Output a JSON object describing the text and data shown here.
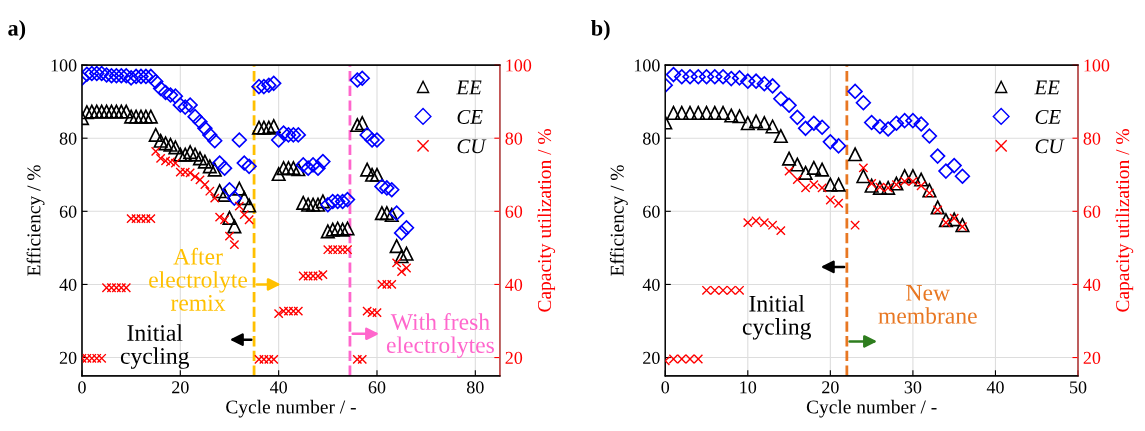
{
  "chart_data": [
    {
      "type": "scatter",
      "title": "a)",
      "xlabel": "Cycle number / -",
      "ylabel": "Efficiency / %",
      "y2label": "Capacity utilization / %",
      "xlim": [
        0,
        85
      ],
      "xticks": [
        0,
        20,
        40,
        60,
        80
      ],
      "ylim": [
        15,
        100
      ],
      "yticks": [
        20,
        40,
        60,
        80,
        100
      ],
      "y2lim": [
        15,
        100
      ],
      "y2ticks": [
        20,
        40,
        60,
        80,
        100
      ],
      "grid": true,
      "legend": "top right",
      "ref_lines": [
        {
          "axis": "x",
          "value": 35,
          "color": "#ffc000",
          "line_style": "dashed"
        },
        {
          "axis": "x",
          "value": 54.5,
          "color": "#ff66cc",
          "line_style": "dashed"
        }
      ],
      "annotations": [
        "After\nelectrolyte\nremix",
        "Initial\ncycling",
        "With fresh\nelectrolytes"
      ],
      "series": [
        {
          "name": "EE",
          "color": "#000000",
          "marker": "triangle",
          "x": [
            0,
            1,
            2,
            3,
            4,
            5,
            6,
            7,
            8,
            9,
            10,
            11,
            12,
            13,
            14,
            15,
            16,
            17,
            18,
            19,
            20,
            21,
            22,
            23,
            24,
            25,
            26,
            27,
            28,
            29,
            30,
            31,
            32,
            33,
            34,
            36,
            37,
            38,
            39,
            40,
            41,
            42,
            43,
            44,
            45,
            46,
            47,
            48,
            49,
            50,
            51,
            52,
            53,
            54,
            56,
            57,
            58,
            59,
            60,
            61,
            62,
            63,
            64,
            65,
            66
          ],
          "values": [
            85.5,
            87.1,
            87.3,
            87.3,
            87.3,
            87.3,
            87.3,
            87.3,
            87.3,
            87.3,
            85.9,
            85.9,
            85.9,
            85.9,
            85.9,
            80.9,
            79.3,
            78.6,
            78.2,
            77.5,
            75.5,
            75.5,
            76.2,
            75.5,
            74.5,
            73.6,
            72.3,
            71.4,
            65.5,
            64.5,
            58.2,
            55.9,
            66.2,
            63.6,
            61.6,
            82.9,
            82.9,
            82.9,
            83.3,
            70.2,
            71.8,
            71.8,
            71.8,
            71.5,
            62.3,
            61.8,
            61.8,
            61.8,
            62.7,
            54.5,
            55.0,
            55.3,
            55.0,
            55.3,
            83.6,
            84.1,
            71.4,
            70.0,
            70.0,
            59.5,
            59.5,
            59.0,
            50.5,
            47.7,
            48.4
          ]
        },
        {
          "name": "CE",
          "color": "#0000ff",
          "marker": "diamond",
          "x": [
            0,
            1,
            2,
            3,
            4,
            5,
            6,
            7,
            8,
            9,
            10,
            11,
            12,
            13,
            14,
            15,
            16,
            17,
            18,
            19,
            20,
            21,
            22,
            23,
            24,
            25,
            26,
            27,
            28,
            29,
            30,
            31,
            32,
            33,
            34,
            36,
            37,
            38,
            39,
            40,
            41,
            42,
            43,
            44,
            45,
            46,
            47,
            48,
            49,
            50,
            51,
            52,
            53,
            54,
            56,
            57,
            58,
            59,
            60,
            61,
            62,
            63,
            64,
            65,
            66
          ],
          "values": [
            96.4,
            97.5,
            97.7,
            97.7,
            97.7,
            97.3,
            97.1,
            97.1,
            97.1,
            97.1,
            96.5,
            96.9,
            96.9,
            96.9,
            96.9,
            95.5,
            93.6,
            92.5,
            91.8,
            91.5,
            89.1,
            88.5,
            89.1,
            85.9,
            84.5,
            82.7,
            80.9,
            79.3,
            73.2,
            71.8,
            65.9,
            63.6,
            79.5,
            73.2,
            72.3,
            94.1,
            94.1,
            94.5,
            95.0,
            79.5,
            81.4,
            80.9,
            80.9,
            80.9,
            72.7,
            71.8,
            72.7,
            71.8,
            73.6,
            61.8,
            62.7,
            62.7,
            62.7,
            63.2,
            95.9,
            96.4,
            80.9,
            79.5,
            79.5,
            66.8,
            66.4,
            65.9,
            59.5,
            54.1,
            55.5
          ]
        },
        {
          "name": "CU",
          "color": "#ff0000",
          "marker": "cross",
          "axis": "y2",
          "x": [
            0,
            1,
            2,
            3,
            4,
            5,
            6,
            7,
            8,
            9,
            10,
            11,
            12,
            13,
            14,
            15,
            16,
            17,
            18,
            19,
            20,
            21,
            22,
            23,
            24,
            25,
            26,
            27,
            28,
            29,
            30,
            31,
            32,
            33,
            34,
            36,
            37,
            38,
            39,
            40,
            41,
            42,
            43,
            44,
            45,
            46,
            47,
            48,
            49,
            50,
            51,
            52,
            53,
            54,
            56,
            57,
            58,
            59,
            60,
            61,
            62,
            63,
            64,
            65,
            66
          ],
          "values": [
            19.8,
            19.8,
            19.8,
            19.8,
            19.8,
            39.1,
            39.1,
            39.1,
            39.1,
            39.1,
            58.0,
            58.0,
            58.0,
            58.0,
            58.0,
            76.4,
            74.5,
            73.8,
            73.5,
            73.2,
            70.7,
            70.7,
            70.5,
            69.5,
            68.6,
            67.3,
            65.5,
            63.6,
            58.4,
            57.7,
            53.2,
            50.9,
            61.4,
            59.1,
            57.7,
            19.5,
            19.5,
            19.5,
            19.5,
            32.0,
            32.7,
            32.7,
            32.7,
            32.7,
            42.3,
            42.3,
            42.3,
            42.3,
            42.7,
            49.5,
            49.5,
            49.5,
            49.5,
            49.5,
            19.5,
            19.5,
            32.7,
            32.3,
            32.3,
            40.0,
            40.0,
            40.0,
            45.9,
            43.5,
            44.5
          ]
        }
      ]
    },
    {
      "type": "scatter",
      "title": "b)",
      "xlabel": "Cycle number / -",
      "ylabel": "Efficiency / %",
      "y2label": "Capacity utilization / %",
      "xlim": [
        0,
        50
      ],
      "xticks": [
        0,
        10,
        20,
        30,
        40,
        50
      ],
      "ylim": [
        15,
        100
      ],
      "yticks": [
        20,
        40,
        60,
        80,
        100
      ],
      "y2lim": [
        15,
        100
      ],
      "y2ticks": [
        20,
        40,
        60,
        80,
        100
      ],
      "grid": true,
      "legend": "top right",
      "ref_lines": [
        {
          "axis": "x",
          "value": 22,
          "color": "#e87722",
          "line_style": "dashed"
        }
      ],
      "annotations": [
        "Initial\ncycling",
        "New\nmembrane"
      ],
      "series": [
        {
          "name": "EE",
          "color": "#000000",
          "marker": "triangle",
          "x": [
            0,
            1,
            2,
            3,
            4,
            5,
            6,
            7,
            8,
            9,
            10,
            11,
            12,
            13,
            14,
            15,
            16,
            17,
            18,
            19,
            20,
            21,
            23,
            24,
            25,
            26,
            27,
            28,
            29,
            30,
            31,
            32,
            33,
            34,
            35,
            36
          ],
          "values": [
            84.3,
            86.9,
            86.9,
            86.9,
            86.9,
            86.9,
            86.9,
            86.9,
            86.2,
            86.0,
            84.1,
            84.6,
            84.1,
            83.2,
            80.6,
            74.4,
            72.8,
            70.5,
            71.9,
            71.4,
            67.3,
            67.3,
            75.6,
            69.6,
            67.0,
            66.4,
            66.4,
            67.6,
            69.6,
            69.6,
            68.7,
            65.7,
            61.1,
            57.6,
            57.8,
            56.2
          ]
        },
        {
          "name": "CE",
          "color": "#0000ff",
          "marker": "diamond",
          "x": [
            0,
            1,
            2,
            3,
            4,
            5,
            6,
            7,
            8,
            9,
            10,
            11,
            12,
            13,
            14,
            15,
            16,
            17,
            18,
            19,
            20,
            21,
            23,
            24,
            25,
            26,
            27,
            28,
            29,
            30,
            31,
            32,
            33,
            34,
            35,
            36
          ],
          "values": [
            94.5,
            97.4,
            96.8,
            96.8,
            96.8,
            96.8,
            96.8,
            96.8,
            96.3,
            96.5,
            95.6,
            95.6,
            94.9,
            94.3,
            90.8,
            89.0,
            85.7,
            82.7,
            84.1,
            83.0,
            79.0,
            77.9,
            92.8,
            89.7,
            84.3,
            83.2,
            82.5,
            84.1,
            84.8,
            84.8,
            83.9,
            80.6,
            75.1,
            71.0,
            72.5,
            69.6
          ]
        },
        {
          "name": "CU",
          "color": "#ff0000",
          "marker": "cross",
          "axis": "y2",
          "x": [
            0,
            1,
            2,
            3,
            4,
            5,
            6,
            7,
            8,
            9,
            10,
            11,
            12,
            13,
            14,
            15,
            16,
            17,
            18,
            19,
            20,
            21,
            23,
            24,
            25,
            26,
            27,
            28,
            29,
            30,
            31,
            32,
            33,
            34,
            35,
            36
          ],
          "values": [
            19.1,
            19.6,
            19.6,
            19.6,
            19.6,
            38.4,
            38.4,
            38.4,
            38.4,
            38.4,
            56.9,
            57.4,
            56.9,
            56.2,
            54.7,
            71.0,
            68.7,
            66.4,
            67.3,
            66.4,
            63.1,
            62.2,
            56.2,
            71.9,
            67.6,
            66.6,
            66.4,
            67.3,
            68.2,
            68.2,
            67.0,
            65.0,
            60.4,
            56.9,
            58.1,
            55.8
          ]
        }
      ]
    }
  ]
}
